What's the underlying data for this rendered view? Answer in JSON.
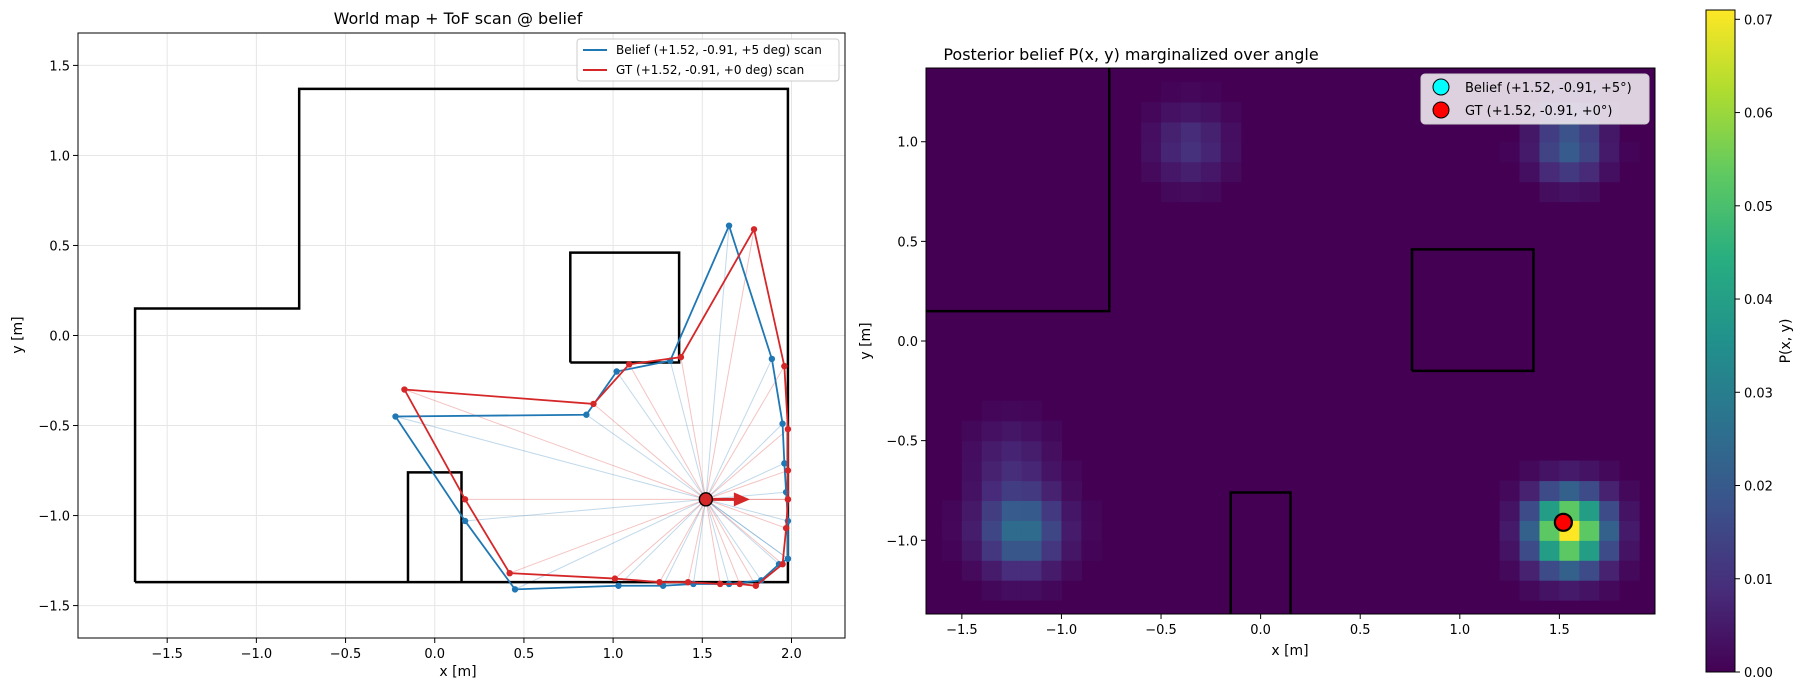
{
  "colors": {
    "belief": "#1f77b4",
    "gt": "#d62728",
    "wall": "#000000",
    "grid": "#e6e6e6",
    "heat_low": "#440154",
    "belief_marker": "#00ffff",
    "gt_marker": "#ff0000"
  },
  "chart_data": [
    {
      "type": "line",
      "title": "World map + ToF scan @ belief",
      "xlabel": "x [m]",
      "ylabel": "y [m]",
      "xlim": [
        -2.0,
        2.3
      ],
      "ylim": [
        -1.68,
        1.68
      ],
      "xticks": [
        -1.5,
        -1.0,
        -0.5,
        0.0,
        0.5,
        1.0,
        1.5,
        2.0
      ],
      "yticks": [
        -1.5,
        -1.0,
        -0.5,
        0.0,
        0.5,
        1.0,
        1.5
      ],
      "xtick_labels": [
        "−1.5",
        "−1.0",
        "−0.5",
        "0.0",
        "0.5",
        "1.0",
        "1.5",
        "2.0"
      ],
      "ytick_labels": [
        "−1.5",
        "−1.0",
        "−0.5",
        "0.0",
        "0.5",
        "1.0",
        "1.5"
      ],
      "grid": true,
      "legend_position": "top-right",
      "robot_pose": {
        "x": 1.52,
        "y": -0.91,
        "heading_deg": 0
      },
      "walls": [
        [
          [
            -1.68,
            -1.37
          ],
          [
            1.98,
            -1.37
          ],
          [
            1.98,
            1.37
          ],
          [
            -0.76,
            1.37
          ],
          [
            -0.76,
            0.15
          ],
          [
            -1.68,
            0.15
          ],
          [
            -1.68,
            -1.37
          ]
        ],
        [
          [
            0.76,
            -0.15
          ],
          [
            1.37,
            -0.15
          ],
          [
            1.37,
            0.46
          ],
          [
            0.76,
            0.46
          ],
          [
            0.76,
            -0.15
          ]
        ],
        [
          [
            -0.15,
            -1.37
          ],
          [
            -0.15,
            -0.76
          ],
          [
            0.15,
            -0.76
          ],
          [
            0.15,
            -1.37
          ]
        ]
      ],
      "series": [
        {
          "name": "Belief (+1.52, -0.91, +5 deg) scan",
          "color_key": "belief",
          "points": [
            [
              1.98,
              -1.24
            ],
            [
              1.98,
              -1.03
            ],
            [
              1.97,
              -0.87
            ],
            [
              1.96,
              -0.71
            ],
            [
              1.95,
              -0.49
            ],
            [
              1.89,
              -0.13
            ],
            [
              1.65,
              0.61
            ],
            [
              1.32,
              -0.14
            ],
            [
              1.02,
              -0.2
            ],
            [
              0.85,
              -0.44
            ],
            [
              -0.22,
              -0.45
            ],
            [
              0.17,
              -1.03
            ],
            [
              0.45,
              -1.41
            ],
            [
              1.03,
              -1.39
            ],
            [
              1.28,
              -1.39
            ],
            [
              1.45,
              -1.38
            ],
            [
              1.65,
              -1.38
            ],
            [
              1.83,
              -1.36
            ],
            [
              1.93,
              -1.27
            ],
            [
              1.98,
              -1.24
            ]
          ]
        },
        {
          "name": "GT (+1.52, -0.91, +0 deg) scan",
          "color_key": "gt",
          "points": [
            [
              1.98,
              -0.91
            ],
            [
              1.98,
              -0.75
            ],
            [
              1.98,
              -0.52
            ],
            [
              1.96,
              -0.17
            ],
            [
              1.79,
              0.59
            ],
            [
              1.38,
              -0.12
            ],
            [
              1.09,
              -0.16
            ],
            [
              0.89,
              -0.38
            ],
            [
              -0.17,
              -0.3
            ],
            [
              0.17,
              -0.91
            ],
            [
              0.42,
              -1.32
            ],
            [
              1.01,
              -1.35
            ],
            [
              1.26,
              -1.37
            ],
            [
              1.42,
              -1.37
            ],
            [
              1.6,
              -1.38
            ],
            [
              1.71,
              -1.38
            ],
            [
              1.8,
              -1.39
            ],
            [
              1.95,
              -1.27
            ],
            [
              1.97,
              -1.07
            ],
            [
              1.98,
              -0.91
            ]
          ]
        }
      ]
    },
    {
      "type": "heatmap",
      "title": "Posterior belief P(x, y) marginalized over angle",
      "xlabel": "x [m]",
      "ylabel": "y [m]",
      "xlim": [
        -1.68,
        1.98
      ],
      "ylim": [
        -1.37,
        1.37
      ],
      "xticks": [
        -1.5,
        -1.0,
        -0.5,
        0.0,
        0.5,
        1.0,
        1.5
      ],
      "yticks": [
        -1.0,
        -0.5,
        0.0,
        0.5,
        1.0
      ],
      "xtick_labels": [
        "−1.5",
        "−1.0",
        "−0.5",
        "0.0",
        "0.5",
        "1.0",
        "1.5"
      ],
      "ytick_labels": [
        "−1.0",
        "−0.5",
        "0.0",
        "0.5",
        "1.0"
      ],
      "cell_size": 0.1,
      "colorbar_label": "P(x, y)",
      "colorbar_range": [
        0.0,
        0.071
      ],
      "colorbar_ticks": [
        0.0,
        0.01,
        0.02,
        0.03,
        0.04,
        0.05,
        0.06,
        0.07
      ],
      "colorbar_tick_labels": [
        "0.00",
        "0.01",
        "0.02",
        "0.03",
        "0.04",
        "0.05",
        "0.06",
        "0.07"
      ],
      "legend_position": "top-right",
      "hotspots": [
        {
          "x": 1.55,
          "y": -0.95,
          "peak": 0.071,
          "spread": 0.13
        },
        {
          "x": -1.2,
          "y": -0.95,
          "peak": 0.026,
          "spread": 0.14
        },
        {
          "x": -1.25,
          "y": -0.6,
          "peak": 0.007,
          "spread": 0.14
        },
        {
          "x": 1.55,
          "y": 0.98,
          "peak": 0.021,
          "spread": 0.12
        },
        {
          "x": -0.35,
          "y": 0.98,
          "peak": 0.01,
          "spread": 0.13
        }
      ],
      "walls": [
        [
          [
            -1.68,
            0.15
          ],
          [
            -0.76,
            0.15
          ],
          [
            -0.76,
            1.37
          ]
        ],
        [
          [
            0.76,
            -0.15
          ],
          [
            1.37,
            -0.15
          ],
          [
            1.37,
            0.46
          ],
          [
            0.76,
            0.46
          ],
          [
            0.76,
            -0.15
          ]
        ],
        [
          [
            -0.15,
            -1.37
          ],
          [
            -0.15,
            -0.76
          ],
          [
            0.15,
            -0.76
          ],
          [
            0.15,
            -1.37
          ]
        ]
      ],
      "markers": [
        {
          "name": "Belief (+1.52, -0.91, +5°)",
          "x": 1.52,
          "y": -0.91,
          "color_key": "belief_marker"
        },
        {
          "name": "GT (+1.52, -0.91, +0°)",
          "x": 1.52,
          "y": -0.91,
          "color_key": "gt_marker"
        }
      ]
    }
  ]
}
